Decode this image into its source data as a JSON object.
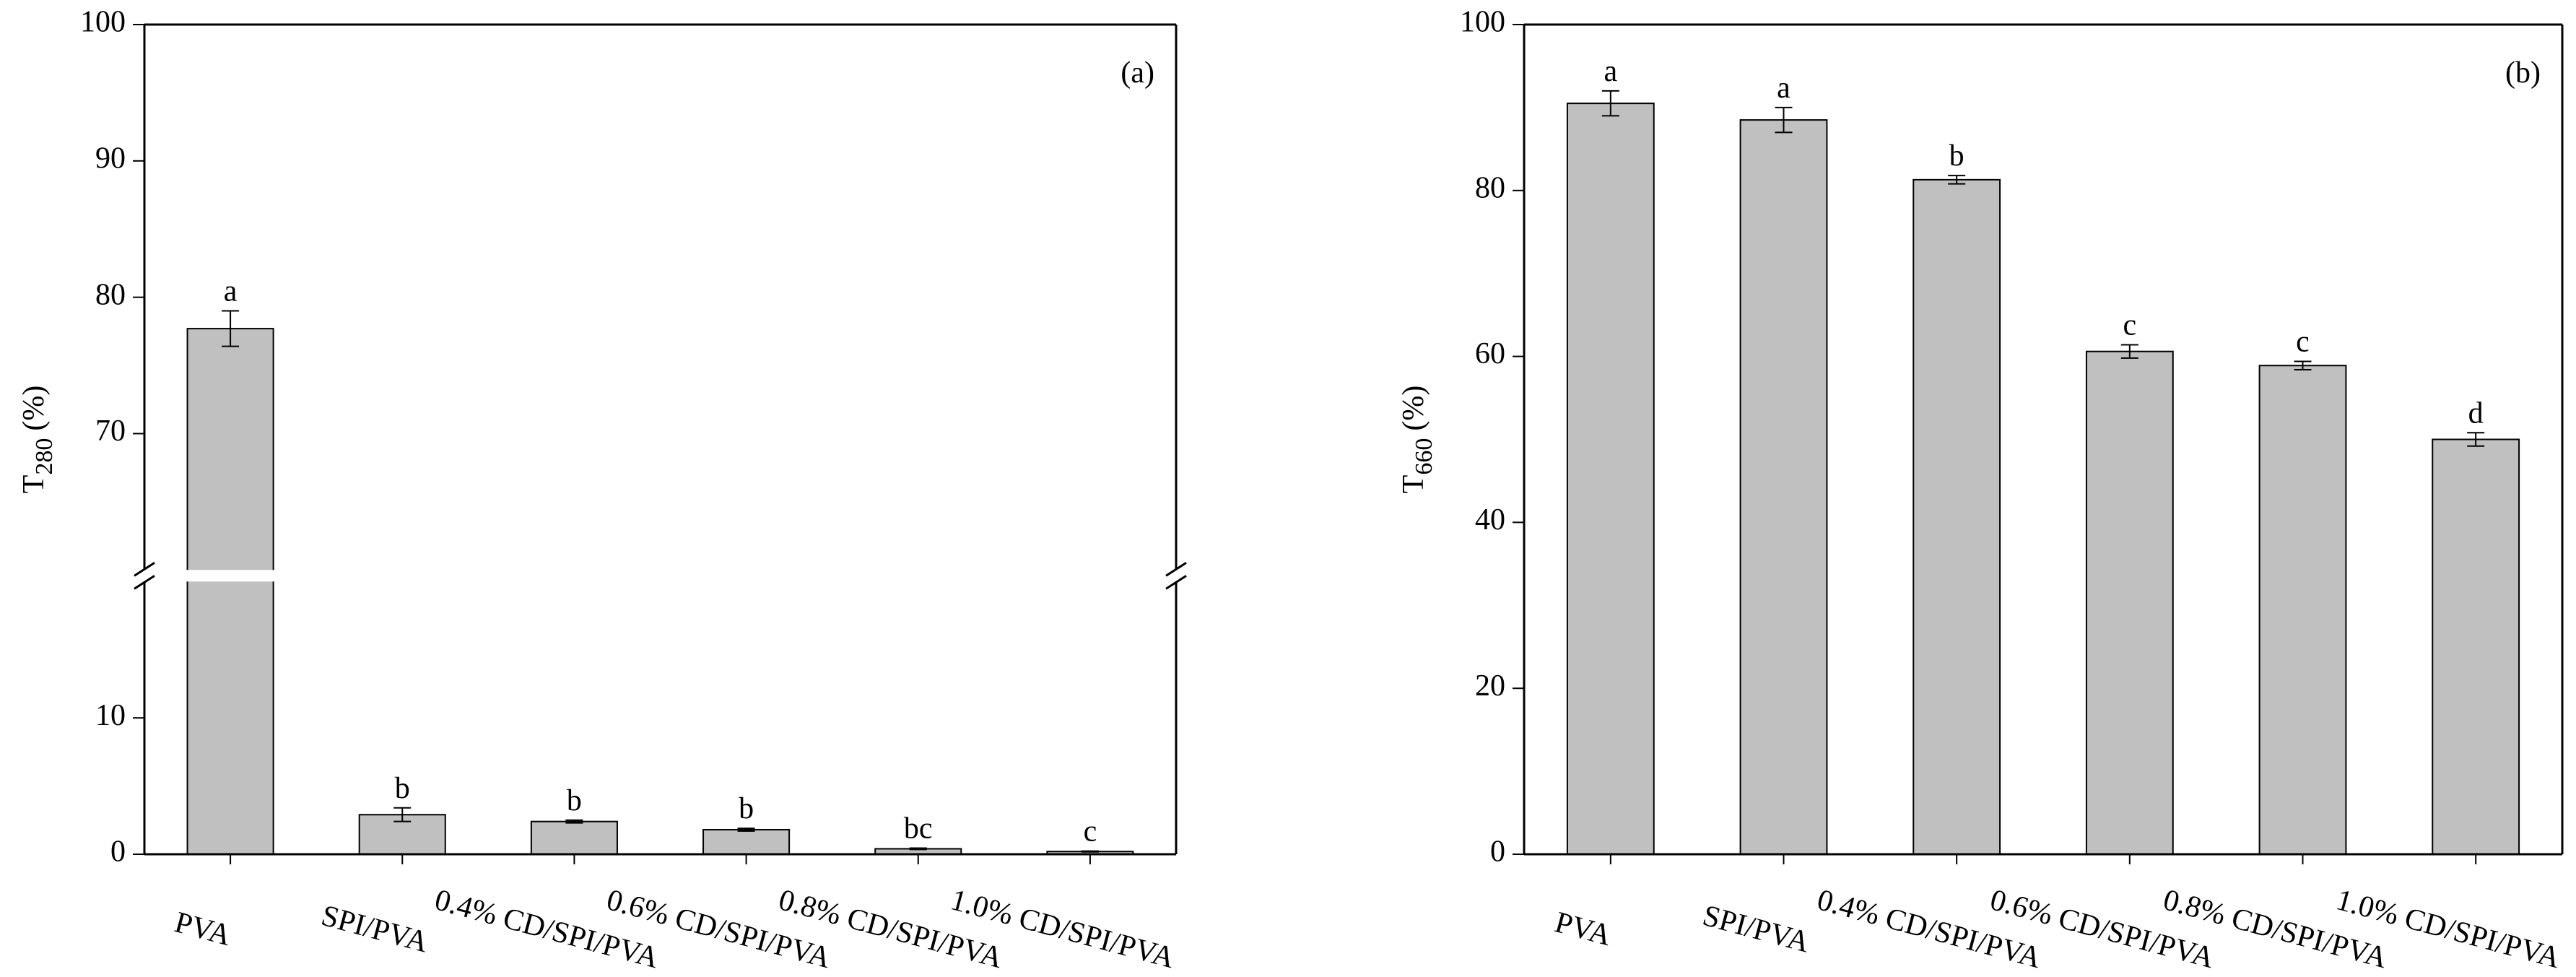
{
  "chart_data": [
    {
      "type": "bar",
      "panel_label": "(a)",
      "ylabel_base": "T",
      "ylabel_subscript": "280",
      "ylabel_unit": "(%)",
      "categories": [
        "PVA",
        "SPI/PVA",
        "0.4% CD/SPI/PVA",
        "0.6% CD/SPI/PVA",
        "0.8% CD/SPI/PVA",
        "1.0% CD/SPI/PVA"
      ],
      "values": [
        77.7,
        2.9,
        2.4,
        1.8,
        0.4,
        0.2
      ],
      "errors": [
        1.3,
        0.5,
        0.1,
        0.1,
        0.05,
        0.03
      ],
      "letters": [
        "a",
        "b",
        "b",
        "b",
        "bc",
        "c"
      ],
      "color": "#c0c0c0",
      "ylim": [
        0,
        100
      ],
      "ybreak": [
        20,
        60
      ],
      "yticks": [
        0,
        10,
        70,
        80,
        90,
        100
      ]
    },
    {
      "type": "bar",
      "panel_label": "(b)",
      "ylabel_base": "T",
      "ylabel_subscript": "660",
      "ylabel_unit": "(%)",
      "categories": [
        "PVA",
        "SPI/PVA",
        "0.4% CD/SPI/PVA",
        "0.6% CD/SPI/PVA",
        "0.8% CD/SPI/PVA",
        "1.0% CD/SPI/PVA"
      ],
      "values": [
        90.5,
        88.5,
        81.3,
        60.6,
        58.9,
        50.0
      ],
      "errors": [
        1.5,
        1.5,
        0.5,
        0.8,
        0.5,
        0.8
      ],
      "letters": [
        "a",
        "a",
        "b",
        "c",
        "c",
        "d"
      ],
      "color": "#c0c0c0",
      "ylim": [
        0,
        100
      ],
      "yticks": [
        0,
        20,
        40,
        60,
        80,
        100
      ]
    }
  ]
}
